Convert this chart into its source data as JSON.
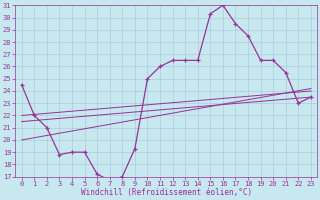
{
  "x_values": [
    0,
    1,
    2,
    3,
    4,
    5,
    6,
    7,
    8,
    9,
    10,
    11,
    12,
    13,
    14,
    15,
    16,
    17,
    18,
    19,
    20,
    21,
    22,
    23
  ],
  "main_line": [
    24.5,
    22.0,
    21.0,
    18.8,
    19.0,
    19.0,
    17.2,
    16.7,
    17.0,
    19.3,
    25.0,
    26.0,
    26.5,
    26.5,
    26.5,
    30.3,
    31.0,
    29.5,
    28.5,
    26.5,
    26.5,
    25.5,
    23.0,
    23.5
  ],
  "reg_line1_pts": [
    [
      0,
      22.0
    ],
    [
      23,
      24.0
    ]
  ],
  "reg_line2_pts": [
    [
      0,
      21.5
    ],
    [
      23,
      23.5
    ]
  ],
  "reg_line3_pts": [
    [
      0,
      20.0
    ],
    [
      23,
      24.2
    ]
  ],
  "line_color": "#993399",
  "bg_color": "#c8e8f0",
  "grid_color": "#a0c8d8",
  "xlabel": "Windchill (Refroidissement éolien,°C)",
  "ylim": [
    17,
    31
  ],
  "xlim": [
    -0.5,
    23.5
  ],
  "yticks": [
    17,
    18,
    19,
    20,
    21,
    22,
    23,
    24,
    25,
    26,
    27,
    28,
    29,
    30,
    31
  ],
  "xticks": [
    0,
    1,
    2,
    3,
    4,
    5,
    6,
    7,
    8,
    9,
    10,
    11,
    12,
    13,
    14,
    15,
    16,
    17,
    18,
    19,
    20,
    21,
    22,
    23
  ],
  "tick_fontsize": 5.0,
  "xlabel_fontsize": 5.5,
  "marker_size": 3.5,
  "line_width": 0.9
}
